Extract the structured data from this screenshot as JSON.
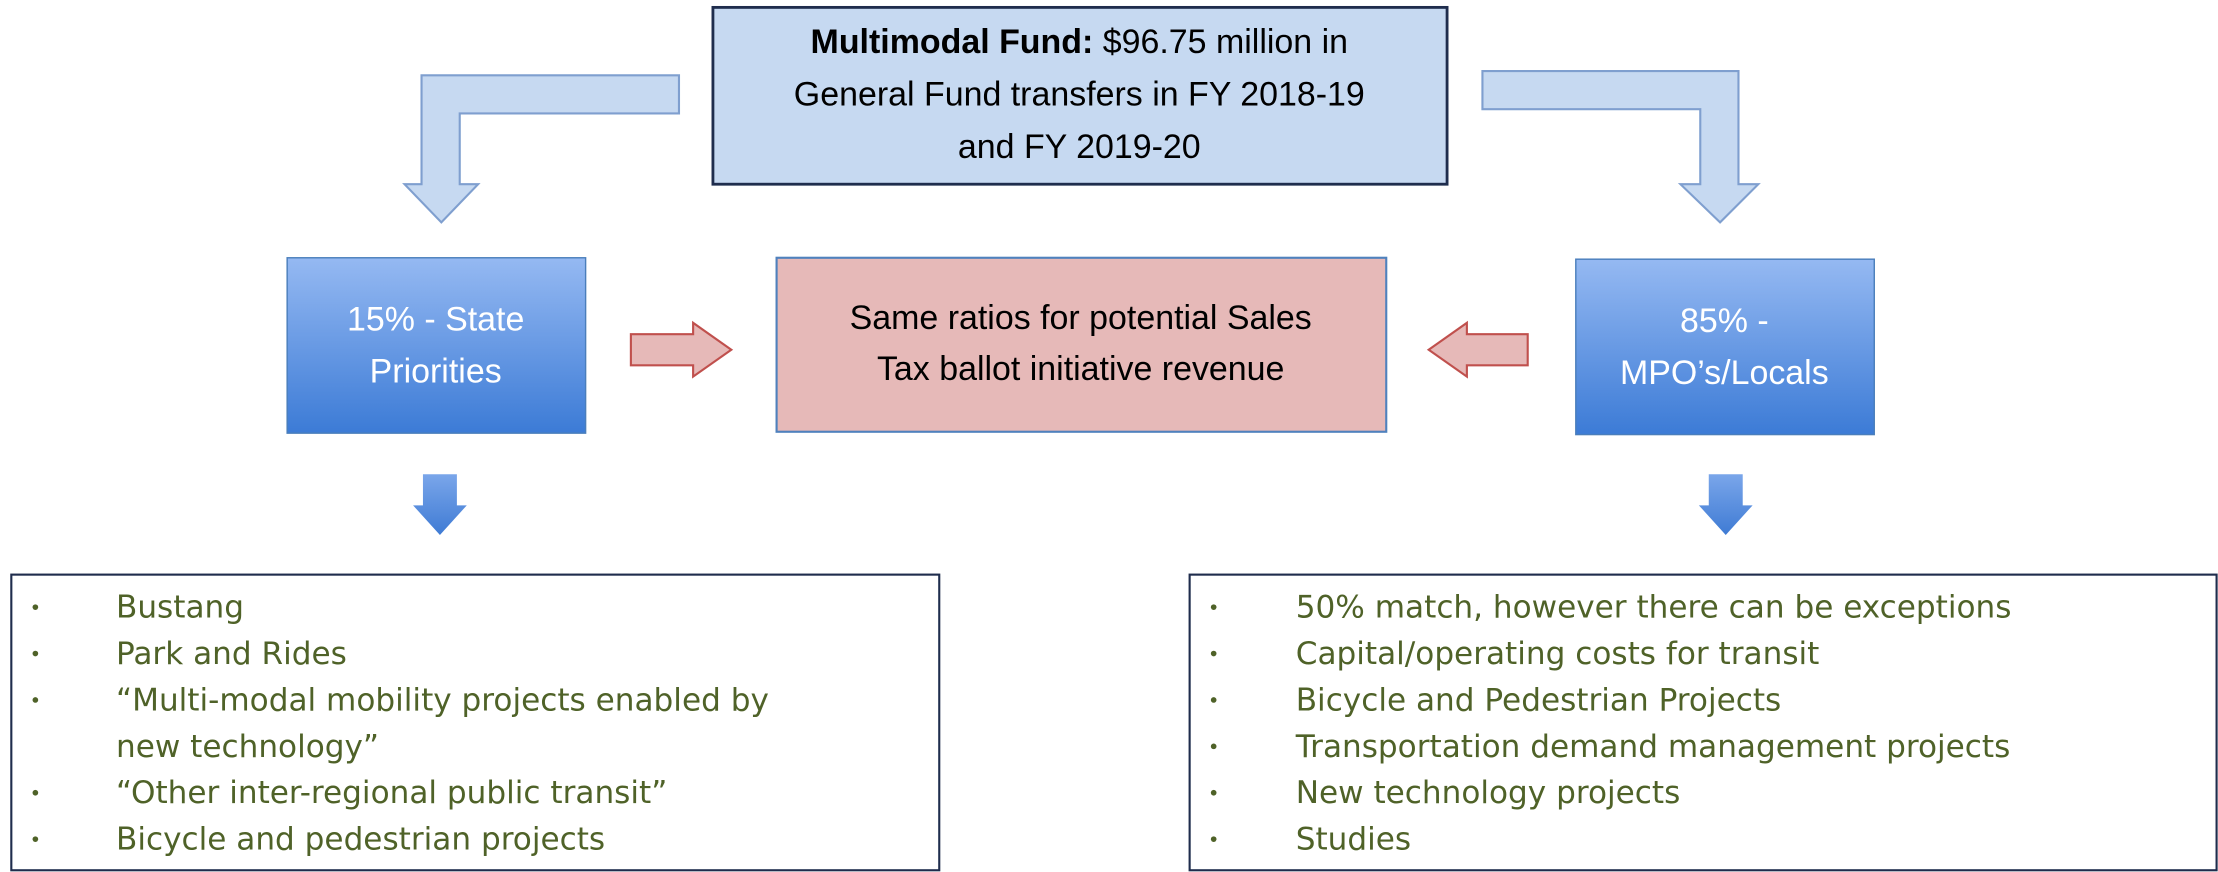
{
  "top": {
    "label": "Multimodal Fund:",
    "lines": [
      "$96.75 million in",
      "General Fund transfers in FY 2018-19",
      "and FY 2019-20"
    ]
  },
  "left_box": {
    "lines": [
      "15% - State",
      "Priorities"
    ]
  },
  "center_box": {
    "lines": [
      "Same ratios for potential Sales",
      "Tax ballot initiative revenue"
    ]
  },
  "right_box": {
    "lines": [
      "85% -",
      "MPO’s/Locals"
    ]
  },
  "left_list": {
    "items": [
      [
        "Bustang"
      ],
      [
        "Park and Rides"
      ],
      [
        "“Multi-modal mobility projects enabled by",
        "new technology”"
      ],
      [
        "“Other inter-regional public transit”"
      ],
      [
        "Bicycle and pedestrian projects"
      ]
    ]
  },
  "right_list": {
    "items": [
      [
        "50% match, however there can be exceptions"
      ],
      [
        "Capital/operating costs for transit"
      ],
      [
        "Bicycle and Pedestrian Projects"
      ],
      [
        "Transportation demand management projects"
      ],
      [
        "New technology projects"
      ],
      [
        "Studies"
      ]
    ]
  }
}
